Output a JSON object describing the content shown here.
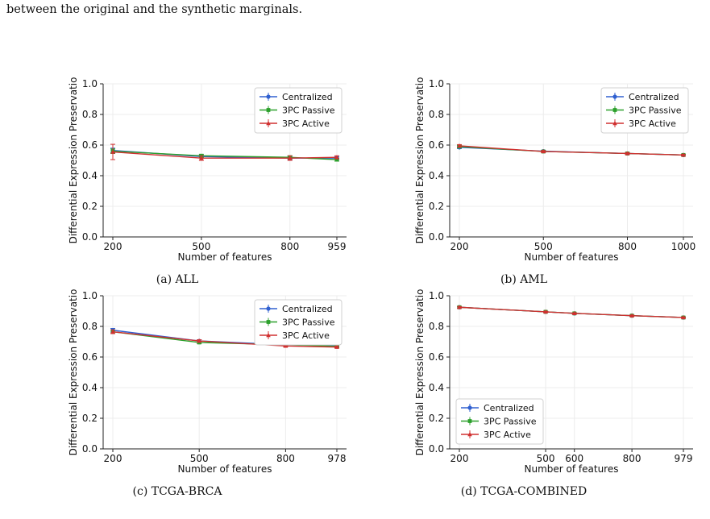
{
  "intro_text": "between the original and the synthetic marginals.",
  "colors": {
    "Centralized": "#3060d0",
    "3PC Passive": "#2ca02c",
    "3PC Active": "#d03030"
  },
  "chart_data": [
    {
      "type": "line",
      "caption": "(a) ALL",
      "xlabel": "Number of features",
      "ylabel": "Differential Expression Preservatio",
      "x": [
        200,
        500,
        800,
        959
      ],
      "xticks": [
        200,
        500,
        800,
        959
      ],
      "ylim": [
        0,
        1
      ],
      "yticks": [
        "0.0",
        "0.2",
        "0.4",
        "0.6",
        "0.8",
        "1.0"
      ],
      "legend_position": "top-right",
      "series": [
        {
          "name": "Centralized",
          "values": [
            0.565,
            0.525,
            0.515,
            0.515
          ],
          "err": [
            0.015,
            0.01,
            0.01,
            0.01
          ]
        },
        {
          "name": "3PC Passive",
          "values": [
            0.56,
            0.53,
            0.52,
            0.505
          ],
          "err": [
            0.015,
            0.01,
            0.01,
            0.01
          ]
        },
        {
          "name": "3PC Active",
          "values": [
            0.555,
            0.515,
            0.515,
            0.52
          ],
          "err": [
            0.05,
            0.015,
            0.015,
            0.01
          ]
        }
      ]
    },
    {
      "type": "line",
      "caption": "(b) AML",
      "xlabel": "Number of features",
      "ylabel": "Differential Expression Preservatio",
      "x": [
        200,
        500,
        800,
        1000
      ],
      "xticks": [
        200,
        500,
        800,
        1000
      ],
      "ylim": [
        0,
        1
      ],
      "yticks": [
        "0.0",
        "0.2",
        "0.4",
        "0.6",
        "0.8",
        "1.0"
      ],
      "legend_position": "top-right",
      "series": [
        {
          "name": "Centralized",
          "values": [
            0.585,
            0.56,
            0.545,
            0.535
          ],
          "err": [
            0.008,
            0.006,
            0.006,
            0.005
          ]
        },
        {
          "name": "3PC Passive",
          "values": [
            0.59,
            0.558,
            0.545,
            0.535
          ],
          "err": [
            0.008,
            0.006,
            0.006,
            0.005
          ]
        },
        {
          "name": "3PC Active",
          "values": [
            0.595,
            0.558,
            0.545,
            0.535
          ],
          "err": [
            0.008,
            0.006,
            0.006,
            0.005
          ]
        }
      ]
    },
    {
      "type": "line",
      "caption": "(c) TCGA-BRCA",
      "xlabel": "Number of features",
      "ylabel": "Differential Expression Preservatio",
      "x": [
        200,
        500,
        800,
        978
      ],
      "xticks": [
        200,
        500,
        800,
        978
      ],
      "ylim": [
        0,
        1
      ],
      "yticks": [
        "0.0",
        "0.2",
        "0.4",
        "0.6",
        "0.8",
        "1.0"
      ],
      "legend_position": "top-right",
      "series": [
        {
          "name": "Centralized",
          "values": [
            0.775,
            0.705,
            0.68,
            0.675
          ],
          "err": [
            0.012,
            0.008,
            0.006,
            0.006
          ]
        },
        {
          "name": "3PC Passive",
          "values": [
            0.765,
            0.695,
            0.68,
            0.67
          ],
          "err": [
            0.012,
            0.008,
            0.006,
            0.006
          ]
        },
        {
          "name": "3PC Active",
          "values": [
            0.765,
            0.705,
            0.672,
            0.665
          ],
          "err": [
            0.012,
            0.008,
            0.006,
            0.006
          ]
        }
      ]
    },
    {
      "type": "line",
      "caption": "(d) TCGA-COMBINED",
      "xlabel": "Number of features",
      "ylabel": "Differential Expression Preservatio",
      "x": [
        200,
        500,
        600,
        800,
        979
      ],
      "xticks": [
        200,
        500,
        600,
        800,
        979
      ],
      "ylim": [
        0,
        1
      ],
      "yticks": [
        "0.0",
        "0.2",
        "0.4",
        "0.6",
        "0.8",
        "1.0"
      ],
      "legend_position": "bottom-left",
      "series": [
        {
          "name": "Centralized",
          "values": [
            0.925,
            0.895,
            0.885,
            0.87,
            0.858
          ],
          "err": [
            0.005,
            0.004,
            0.004,
            0.004,
            0.004
          ]
        },
        {
          "name": "3PC Passive",
          "values": [
            0.925,
            0.895,
            0.885,
            0.87,
            0.858
          ],
          "err": [
            0.005,
            0.004,
            0.004,
            0.004,
            0.004
          ]
        },
        {
          "name": "3PC Active",
          "values": [
            0.925,
            0.895,
            0.885,
            0.87,
            0.858
          ],
          "err": [
            0.005,
            0.004,
            0.004,
            0.004,
            0.004
          ]
        }
      ]
    }
  ]
}
